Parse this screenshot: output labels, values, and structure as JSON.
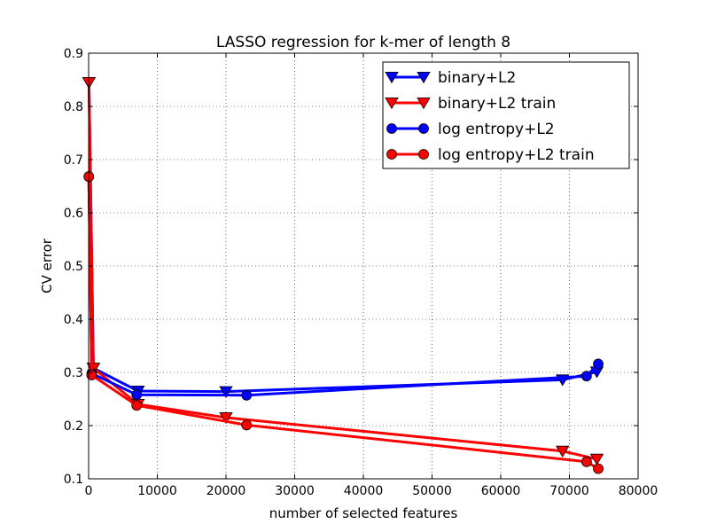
{
  "chart_data": {
    "type": "line",
    "title": "LASSO regression for k-mer of length 8",
    "xlabel": "number of selected features",
    "ylabel": "CV error",
    "xlim": [
      0,
      80000
    ],
    "ylim": [
      0.1,
      0.9
    ],
    "xticks": [
      0,
      10000,
      20000,
      30000,
      40000,
      50000,
      60000,
      70000,
      80000
    ],
    "xtick_labels": [
      "0",
      "10000",
      "20000",
      "30000",
      "40000",
      "50000",
      "60000",
      "70000",
      "80000"
    ],
    "yticks": [
      0.1,
      0.2,
      0.3,
      0.4,
      0.5,
      0.6,
      0.7,
      0.8,
      0.9
    ],
    "ytick_labels": [
      "0.1",
      "0.2",
      "0.3",
      "0.4",
      "0.5",
      "0.6",
      "0.7",
      "0.8",
      "0.9"
    ],
    "grid": true,
    "legend_position": "top-right",
    "series": [
      {
        "name": "binary+L2",
        "color": "#0000ff",
        "marker": "triangle-down",
        "x": [
          50,
          700,
          7200,
          20000,
          69000,
          74000
        ],
        "y": [
          0.845,
          0.308,
          0.265,
          0.264,
          0.286,
          0.301
        ]
      },
      {
        "name": "binary+L2 train",
        "color": "#ff0000",
        "marker": "triangle-down",
        "x": [
          50,
          700,
          7200,
          20000,
          69000,
          74000
        ],
        "y": [
          0.845,
          0.308,
          0.24,
          0.215,
          0.152,
          0.137
        ]
      },
      {
        "name": "log entropy+L2",
        "color": "#0000ff",
        "marker": "circle",
        "x": [
          30,
          450,
          7000,
          23000,
          72500,
          74200
        ],
        "y": [
          0.668,
          0.298,
          0.258,
          0.257,
          0.293,
          0.316
        ]
      },
      {
        "name": "log entropy+L2 train",
        "color": "#ff0000",
        "marker": "circle",
        "x": [
          30,
          450,
          7000,
          23000,
          72500,
          74200
        ],
        "y": [
          0.668,
          0.295,
          0.238,
          0.201,
          0.132,
          0.119
        ]
      }
    ]
  }
}
